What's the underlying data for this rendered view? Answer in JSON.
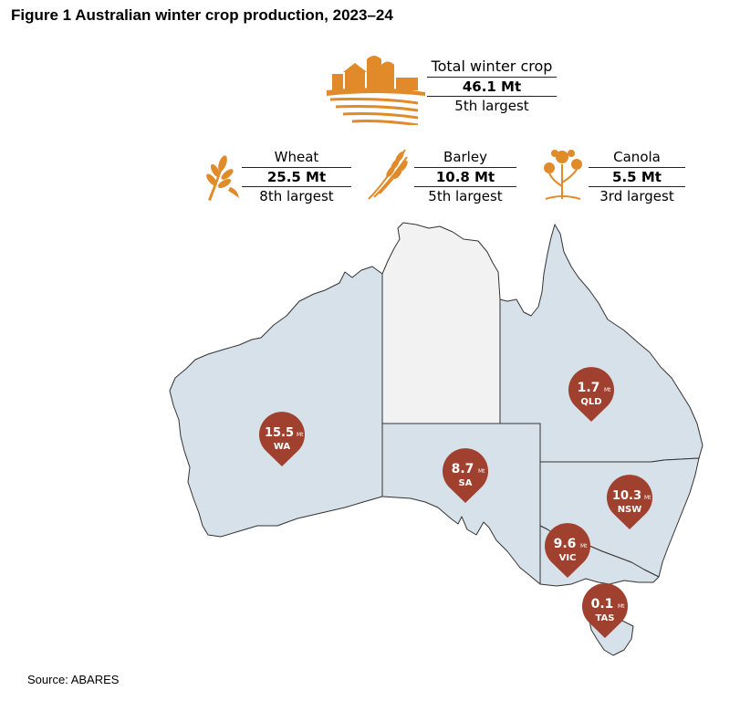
{
  "title": "Figure 1 Australian winter crop production, 2023–24",
  "total": {
    "label": "Total winter crop",
    "value": "46.1 Mt",
    "rank": "5th largest",
    "icon": "farm-silo-icon"
  },
  "crops": [
    {
      "label": "Wheat",
      "value": "25.5 Mt",
      "rank": "8th largest",
      "icon": "wheat-icon"
    },
    {
      "label": "Barley",
      "value": "10.8 Mt",
      "rank": "5th largest",
      "icon": "barley-icon"
    },
    {
      "label": "Canola",
      "value": "5.5 Mt",
      "rank": "3rd largest",
      "icon": "canola-icon"
    }
  ],
  "states": [
    {
      "code": "WA",
      "value": "15.5",
      "unit": "Mt"
    },
    {
      "code": "SA",
      "value": "8.7",
      "unit": "Mt"
    },
    {
      "code": "QLD",
      "value": "1.7",
      "unit": "Mt"
    },
    {
      "code": "NSW",
      "value": "10.3",
      "unit": "Mt"
    },
    {
      "code": "VIC",
      "value": "9.6",
      "unit": "Mt"
    },
    {
      "code": "TAS",
      "value": "0.1",
      "unit": "Mt"
    }
  ],
  "colors": {
    "land": "#d7e1ea",
    "nt_land": "#f2f2f2",
    "border": "#333333",
    "pin": "#a0402e",
    "icon": "#e08a2a"
  },
  "source": "Source: ABARES"
}
